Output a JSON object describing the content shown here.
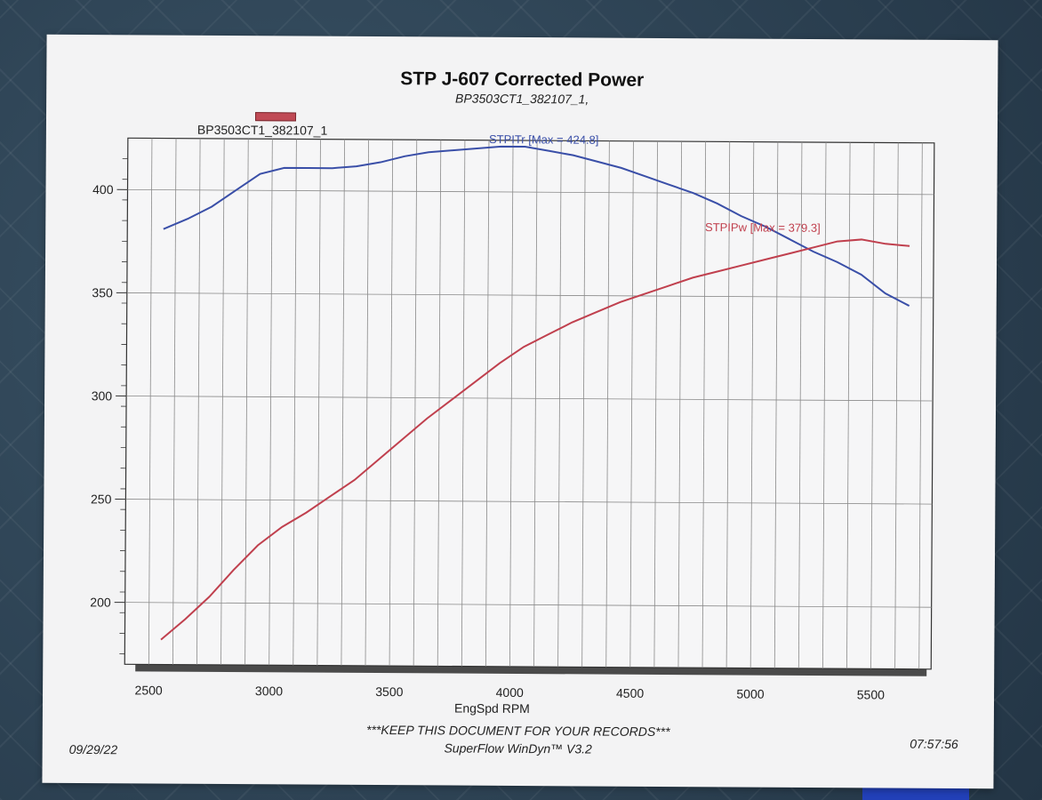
{
  "page": {
    "title": "STP J-607 Corrected Power",
    "subtitle": "BP3503CT1_382107_1,",
    "legend_label": "BP3503CT1_382107_1",
    "footer_line1": "***KEEP THIS DOCUMENT FOR YOUR RECORDS***",
    "footer_line2": "SuperFlow WinDyn™ V3.2",
    "date": "09/29/22",
    "time": "07:57:56"
  },
  "chart_data": {
    "type": "line",
    "title": "STP J-607 Corrected Power",
    "subtitle": "BP3503CT1_382107_1,",
    "xlabel": "EngSpd RPM",
    "ylabel": "",
    "xlim": [
      2400,
      5750
    ],
    "ylim": [
      170,
      425
    ],
    "x_ticks": [
      2500,
      3000,
      3500,
      4000,
      4500,
      5000,
      5500
    ],
    "y_ticks": [
      200,
      250,
      300,
      350,
      400
    ],
    "grid": true,
    "legend": "top-left",
    "series": [
      {
        "name": "STPITr",
        "label": "STPITr [Max = 424.8]",
        "color": "#3a4fa8",
        "x": [
          2550,
          2650,
          2750,
          2850,
          2950,
          3050,
          3150,
          3250,
          3350,
          3450,
          3550,
          3650,
          3750,
          3850,
          3950,
          4050,
          4150,
          4250,
          4350,
          4450,
          4550,
          4650,
          4750,
          4850,
          4950,
          5050,
          5150,
          5250,
          5350,
          5450,
          5550,
          5650
        ],
        "values": [
          381,
          386,
          392,
          400,
          408,
          411,
          411,
          411,
          412,
          414,
          417,
          419,
          420,
          421,
          422,
          422,
          420,
          418,
          415,
          412,
          408,
          404,
          400,
          395,
          389,
          384,
          378,
          372,
          367,
          361,
          352,
          346
        ]
      },
      {
        "name": "STPIPw",
        "label": "STPIPw [Max = 379.3]",
        "color": "#c0404e",
        "x": [
          2550,
          2650,
          2750,
          2850,
          2950,
          3050,
          3150,
          3250,
          3350,
          3450,
          3550,
          3650,
          3750,
          3850,
          3950,
          4050,
          4150,
          4250,
          4350,
          4450,
          4550,
          4650,
          4750,
          4850,
          4950,
          5050,
          5150,
          5250,
          5350,
          5450,
          5550,
          5650
        ],
        "values": [
          182,
          192,
          203,
          216,
          228,
          237,
          244,
          252,
          260,
          270,
          280,
          290,
          299,
          308,
          317,
          325,
          331,
          337,
          342,
          347,
          351,
          355,
          359,
          362,
          365,
          368,
          371,
          374,
          377,
          378,
          376,
          375
        ]
      }
    ]
  }
}
